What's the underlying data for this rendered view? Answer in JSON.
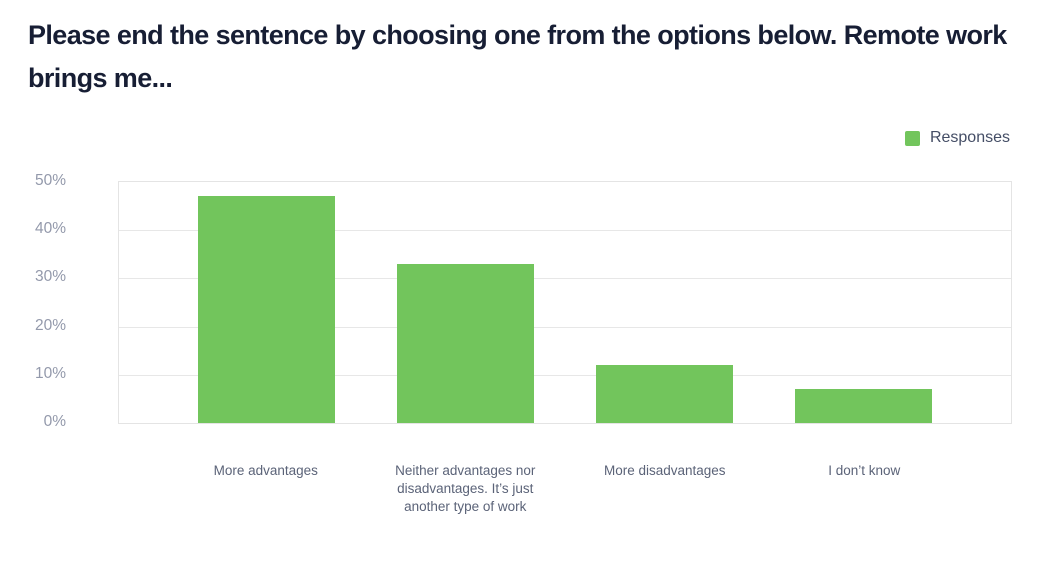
{
  "header": {
    "title": "Please end the sentence by choosing one from the options below. Remote work brings me..."
  },
  "legend": {
    "label": "Responses",
    "swatch_color": "#72c55c",
    "position": "top-right"
  },
  "chart_data": {
    "type": "bar",
    "title": "Please end the sentence by choosing one from the options below. Remote work brings me...",
    "categories": [
      "More advantages",
      "Neither advantages nor disadvantages. It’s just another type of work",
      "More disadvantages",
      "I don’t know"
    ],
    "series": [
      {
        "name": "Responses",
        "values": [
          47,
          33,
          12,
          7
        ]
      }
    ],
    "values": [
      47,
      33,
      12,
      7
    ],
    "value_unit": "%",
    "xlabel": "",
    "ylabel": "",
    "ylim": [
      0,
      50
    ],
    "yticks": [
      "0%",
      "10%",
      "20%",
      "30%",
      "40%",
      "50%"
    ],
    "grid": true,
    "legend_position": "top-right",
    "bar_color": "#72c55c"
  },
  "colors": {
    "title_text": "#171e34",
    "tick_text": "#9399ab",
    "category_text": "#5b6378",
    "legend_text": "#454e66",
    "bar_fill": "#72c55c",
    "gridline": "#e7e7e7",
    "plot_border": "#e4e4e4",
    "background": "#ffffff"
  }
}
